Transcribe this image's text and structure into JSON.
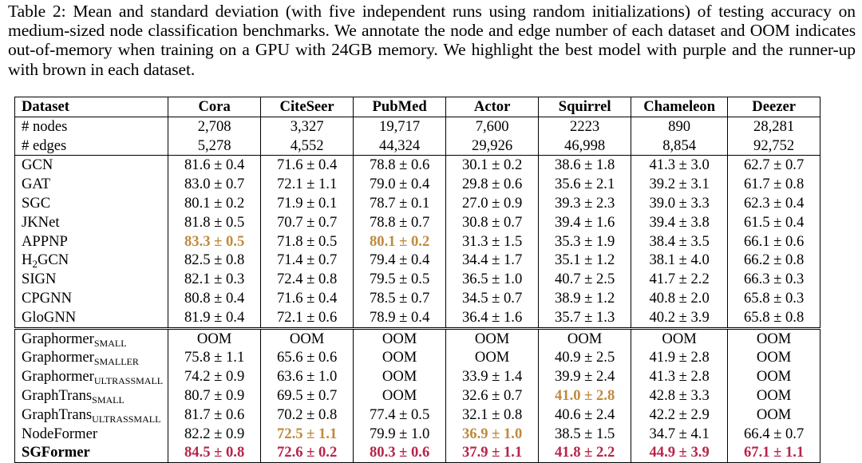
{
  "caption": "Table 2: Mean and standard deviation (with five independent runs using random initializations) of testing accuracy on medium-sized node classification benchmarks. We annotate the node and edge number of each dataset and OOM indicates out-of-memory when training on a GPU with 24GB memory. We highlight the best model with purple and the runner-up with brown in each dataset.",
  "colors": {
    "best": "#b7254a",
    "runner_up": "#c18a3d"
  },
  "header": {
    "label": "Dataset",
    "datasets": [
      "Cora",
      "CiteSeer",
      "PubMed",
      "Actor",
      "Squirrel",
      "Chameleon",
      "Deezer"
    ]
  },
  "stats": [
    {
      "label": "# nodes",
      "values": [
        "2,708",
        "3,327",
        "19,717",
        "7,600",
        "2223",
        "890",
        "28,281"
      ]
    },
    {
      "label": "# edges",
      "values": [
        "5,278",
        "4,552",
        "44,324",
        "29,926",
        "46,998",
        "8,854",
        "92,752"
      ]
    }
  ],
  "gnn_rows": [
    {
      "model": "GCN",
      "cells": [
        {
          "v": "81.6 ± 0.4"
        },
        {
          "v": "71.6 ± 0.4"
        },
        {
          "v": "78.8 ± 0.6"
        },
        {
          "v": "30.1 ± 0.2"
        },
        {
          "v": "38.6 ± 1.8"
        },
        {
          "v": "41.3 ± 3.0"
        },
        {
          "v": "62.7 ± 0.7"
        }
      ]
    },
    {
      "model": "GAT",
      "cells": [
        {
          "v": "83.0 ± 0.7"
        },
        {
          "v": "72.1 ± 1.1"
        },
        {
          "v": "79.0 ± 0.4"
        },
        {
          "v": "29.8 ± 0.6"
        },
        {
          "v": "35.6 ± 2.1"
        },
        {
          "v": "39.2 ± 3.1"
        },
        {
          "v": "61.7 ± 0.8"
        }
      ]
    },
    {
      "model": "SGC",
      "cells": [
        {
          "v": "80.1 ± 0.2"
        },
        {
          "v": "71.9 ± 0.1"
        },
        {
          "v": "78.7 ± 0.1"
        },
        {
          "v": "27.0 ± 0.9"
        },
        {
          "v": "39.3 ± 2.3"
        },
        {
          "v": "39.0 ± 3.3"
        },
        {
          "v": "62.3 ± 0.4"
        }
      ]
    },
    {
      "model": "JKNet",
      "cells": [
        {
          "v": "81.8 ± 0.5"
        },
        {
          "v": "70.7 ± 0.7"
        },
        {
          "v": "78.8 ± 0.7"
        },
        {
          "v": "30.8 ± 0.7"
        },
        {
          "v": "39.4 ± 1.6"
        },
        {
          "v": "39.4 ± 3.8"
        },
        {
          "v": "61.5 ± 0.4"
        }
      ]
    },
    {
      "model": "APPNP",
      "cells": [
        {
          "v": "83.3 ± 0.5",
          "h": "second"
        },
        {
          "v": "71.8 ± 0.5"
        },
        {
          "v": "80.1 ± 0.2",
          "h": "second"
        },
        {
          "v": "31.3 ± 1.5"
        },
        {
          "v": "35.3 ± 1.9"
        },
        {
          "v": "38.4 ± 3.5"
        },
        {
          "v": "66.1 ± 0.6"
        }
      ]
    },
    {
      "model": "H",
      "model_sub": "2",
      "model_tail": "GCN",
      "cells": [
        {
          "v": "82.5 ± 0.8"
        },
        {
          "v": "71.4 ± 0.7"
        },
        {
          "v": "79.4 ± 0.4"
        },
        {
          "v": "34.4 ± 1.7"
        },
        {
          "v": "35.1 ± 1.2"
        },
        {
          "v": "38.1 ± 4.0"
        },
        {
          "v": "66.2 ± 0.8"
        }
      ]
    },
    {
      "model": "SIGN",
      "cells": [
        {
          "v": "82.1 ± 0.3"
        },
        {
          "v": "72.4 ± 0.8"
        },
        {
          "v": "79.5 ± 0.5"
        },
        {
          "v": "36.5 ± 1.0"
        },
        {
          "v": "40.7 ± 2.5"
        },
        {
          "v": "41.7 ± 2.2"
        },
        {
          "v": "66.3 ± 0.3"
        }
      ]
    },
    {
      "model": "CPGNN",
      "cells": [
        {
          "v": "80.8 ± 0.4"
        },
        {
          "v": "71.6 ± 0.4"
        },
        {
          "v": "78.5 ± 0.7"
        },
        {
          "v": "34.5 ± 0.7"
        },
        {
          "v": "38.9 ± 1.2"
        },
        {
          "v": "40.8 ± 2.0"
        },
        {
          "v": "65.8 ± 0.3"
        }
      ]
    },
    {
      "model": "GloGNN",
      "cells": [
        {
          "v": "81.9 ± 0.4"
        },
        {
          "v": "72.1 ± 0.6"
        },
        {
          "v": "78.9 ± 0.4"
        },
        {
          "v": "36.4 ± 1.6"
        },
        {
          "v": "35.7 ± 1.3"
        },
        {
          "v": "40.2 ± 3.9"
        },
        {
          "v": "65.8 ± 0.8"
        }
      ]
    }
  ],
  "transformer_rows": [
    {
      "model": "Graphormer",
      "model_sub": "SMALL",
      "cells": [
        {
          "v": "OOM"
        },
        {
          "v": "OOM"
        },
        {
          "v": "OOM"
        },
        {
          "v": "OOM"
        },
        {
          "v": "OOM"
        },
        {
          "v": "OOM"
        },
        {
          "v": "OOM"
        }
      ]
    },
    {
      "model": "Graphormer",
      "model_sub": "SMALLER",
      "cells": [
        {
          "v": "75.8 ± 1.1"
        },
        {
          "v": "65.6 ± 0.6"
        },
        {
          "v": "OOM"
        },
        {
          "v": "OOM"
        },
        {
          "v": "40.9 ± 2.5"
        },
        {
          "v": "41.9 ± 2.8"
        },
        {
          "v": "OOM"
        }
      ]
    },
    {
      "model": "Graphormer",
      "model_sub": "ULTRASSMALL",
      "cells": [
        {
          "v": "74.2 ± 0.9"
        },
        {
          "v": "63.6 ± 1.0"
        },
        {
          "v": "OOM"
        },
        {
          "v": "33.9 ± 1.4"
        },
        {
          "v": "39.9 ± 2.4"
        },
        {
          "v": "41.3 ± 2.8"
        },
        {
          "v": "OOM"
        }
      ]
    },
    {
      "model": "GraphTrans",
      "model_sub": "SMALL",
      "cells": [
        {
          "v": "80.7 ± 0.9"
        },
        {
          "v": "69.5 ± 0.7"
        },
        {
          "v": "OOM"
        },
        {
          "v": "32.6 ± 0.7"
        },
        {
          "v": "41.0 ± 2.8",
          "h": "second"
        },
        {
          "v": "42.8 ± 3.3"
        },
        {
          "v": "OOM"
        }
      ]
    },
    {
      "model": "GraphTrans",
      "model_sub": "ULTRASSMALL",
      "cells": [
        {
          "v": "81.7 ± 0.6"
        },
        {
          "v": "70.2 ± 0.8"
        },
        {
          "v": "77.4 ± 0.5"
        },
        {
          "v": "32.1 ± 0.8"
        },
        {
          "v": "40.6 ± 2.4"
        },
        {
          "v": "42.2 ± 2.9"
        },
        {
          "v": "OOM"
        }
      ]
    },
    {
      "model": "NodeFormer",
      "cells": [
        {
          "v": "82.2 ± 0.9"
        },
        {
          "v": "72.5 ± 1.1",
          "h": "second"
        },
        {
          "v": "79.9 ± 1.0"
        },
        {
          "v": "36.9 ± 1.0",
          "h": "second"
        },
        {
          "v": "38.5 ± 1.5"
        },
        {
          "v": "34.7 ± 4.1"
        },
        {
          "v": "66.4 ± 0.7"
        }
      ]
    },
    {
      "model": "SGFormer",
      "bold": true,
      "cells": [
        {
          "v": "84.5 ± 0.8",
          "h": "best"
        },
        {
          "v": "72.6 ± 0.2",
          "h": "best"
        },
        {
          "v": "80.3 ± 0.6",
          "h": "best"
        },
        {
          "v": "37.9 ± 1.1",
          "h": "best"
        },
        {
          "v": "41.8 ± 2.2",
          "h": "best"
        },
        {
          "v": "44.9 ± 3.9",
          "h": "best"
        },
        {
          "v": "67.1 ± 1.1",
          "h": "best"
        }
      ]
    }
  ]
}
